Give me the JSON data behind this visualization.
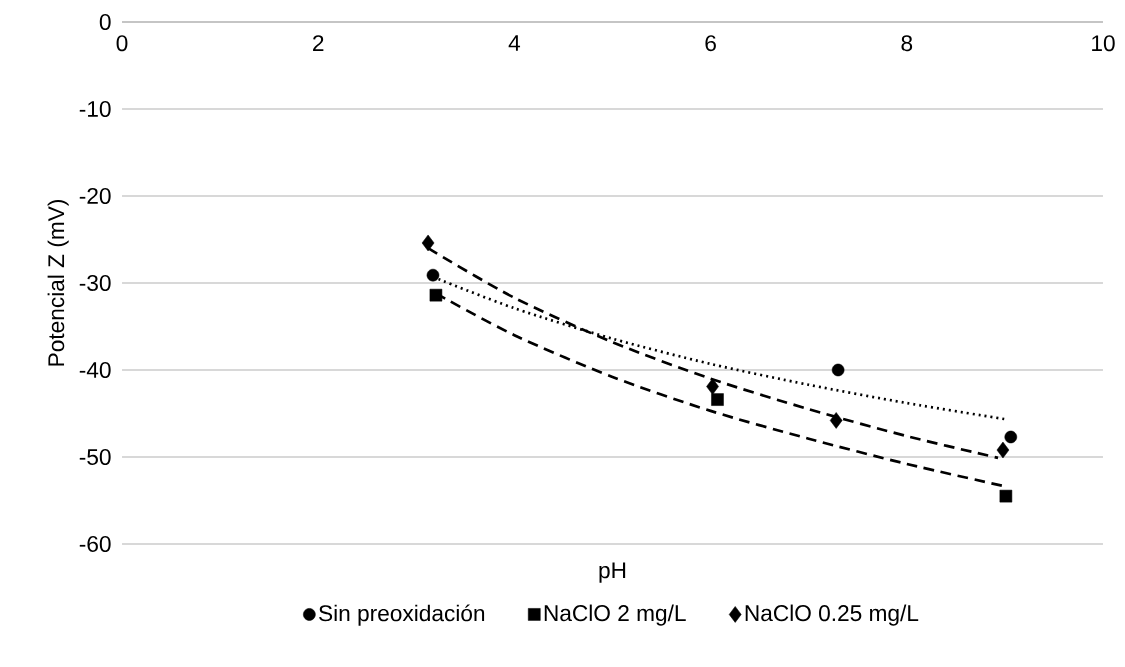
{
  "chart_data": {
    "type": "scatter",
    "xlabel": "pH",
    "ylabel": "Potencial Z (mV)",
    "xlim": [
      0,
      10
    ],
    "ylim": [
      -60,
      0
    ],
    "xticks": [
      0,
      2,
      4,
      6,
      8,
      10
    ],
    "yticks": [
      -60,
      -50,
      -40,
      -30,
      -20,
      -10,
      0
    ],
    "grid": "y",
    "legend": "bottom",
    "series": [
      {
        "name": "Sin preoxidación",
        "color": "#000000",
        "marker": "circle",
        "x": [
          3.17,
          7.3,
          9.06
        ],
        "values": [
          -29.1,
          -40.0,
          -47.7
        ]
      },
      {
        "name": "NaClO 2 mg/L",
        "color": "#000000",
        "marker": "square",
        "x": [
          3.2,
          6.07,
          9.01
        ],
        "values": [
          -31.4,
          -43.4,
          -54.5
        ]
      },
      {
        "name": "NaClO 0.25 mg/L",
        "color": "#000000",
        "marker": "diamond",
        "x": [
          3.12,
          6.02,
          7.28,
          8.98
        ],
        "values": [
          -25.4,
          -41.9,
          -45.8,
          -49.2
        ]
      },
      {
        "type": "line",
        "color": "#000000",
        "marker": "none",
        "line_style": "dotted",
        "x": [
          3.17,
          4,
          5,
          6,
          7,
          8,
          9.03
        ],
        "values": [
          -29.3,
          -32.9,
          -36.4,
          -39.3,
          -41.7,
          -43.8,
          -45.7
        ]
      },
      {
        "type": "line",
        "color": "#000000",
        "marker": "none",
        "line_style": "dashed",
        "x": [
          3.2,
          4,
          5,
          6,
          7,
          8,
          9.01
        ],
        "values": [
          -31.2,
          -36.0,
          -40.8,
          -44.7,
          -47.9,
          -50.8,
          -53.4
        ]
      },
      {
        "type": "line",
        "color": "#000000",
        "marker": "none",
        "line_style": "dashed",
        "x": [
          3.12,
          4,
          5,
          6,
          7,
          8,
          8.93
        ],
        "values": [
          -26.0,
          -31.7,
          -36.8,
          -41.0,
          -44.5,
          -47.6,
          -50.1
        ]
      }
    ]
  }
}
